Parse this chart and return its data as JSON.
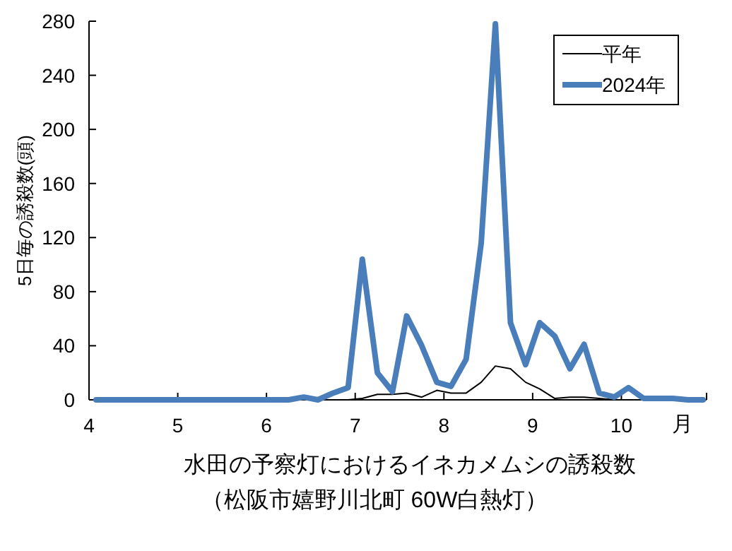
{
  "chart_data": {
    "type": "line",
    "title": "水田の予察灯におけるイネカメムシの誘殺数",
    "subtitle": "（松阪市嬉野川北町 60W白熱灯）",
    "ylabel": "5日毎の誘殺数(頭)",
    "xlabel": "月",
    "x": [
      4.08,
      4.25,
      4.42,
      4.58,
      4.75,
      4.92,
      5.08,
      5.25,
      5.42,
      5.58,
      5.75,
      5.92,
      6.08,
      6.25,
      6.42,
      6.58,
      6.75,
      6.92,
      7.08,
      7.25,
      7.42,
      7.58,
      7.75,
      7.92,
      8.08,
      8.25,
      8.42,
      8.58,
      8.75,
      8.92,
      9.08,
      9.25,
      9.42,
      9.58,
      9.75,
      9.92,
      10.08,
      10.25,
      10.42,
      10.58,
      10.75,
      10.92
    ],
    "series": [
      {
        "name": "平年",
        "color": "#000000",
        "values": [
          null,
          null,
          null,
          null,
          null,
          null,
          null,
          null,
          null,
          null,
          null,
          null,
          null,
          null,
          null,
          null,
          null,
          0,
          1,
          4,
          4,
          5,
          2,
          7,
          5,
          5,
          13,
          25,
          23,
          13,
          8,
          1,
          2,
          2,
          1,
          0,
          null,
          null,
          null,
          null,
          null,
          null
        ]
      },
      {
        "name": "2024年",
        "color": "#4a7ebb",
        "values": [
          0,
          0,
          0,
          0,
          0,
          0,
          0,
          0,
          0,
          0,
          0,
          0,
          0,
          0,
          2,
          0,
          5,
          9,
          104,
          20,
          6,
          62,
          40,
          13,
          10,
          30,
          116,
          278,
          57,
          26,
          57,
          47,
          23,
          41,
          5,
          2,
          9,
          1,
          1,
          1,
          0,
          0
        ]
      }
    ],
    "xlim": [
      4,
      10.96
    ],
    "xticks": [
      4,
      5,
      6,
      7,
      8,
      9,
      10
    ],
    "ylim": [
      0,
      280
    ],
    "yticks": [
      0,
      40,
      80,
      120,
      160,
      200,
      240,
      280
    ],
    "grid": false,
    "legend": "top right",
    "marker": "none",
    "line_style": "solid"
  }
}
